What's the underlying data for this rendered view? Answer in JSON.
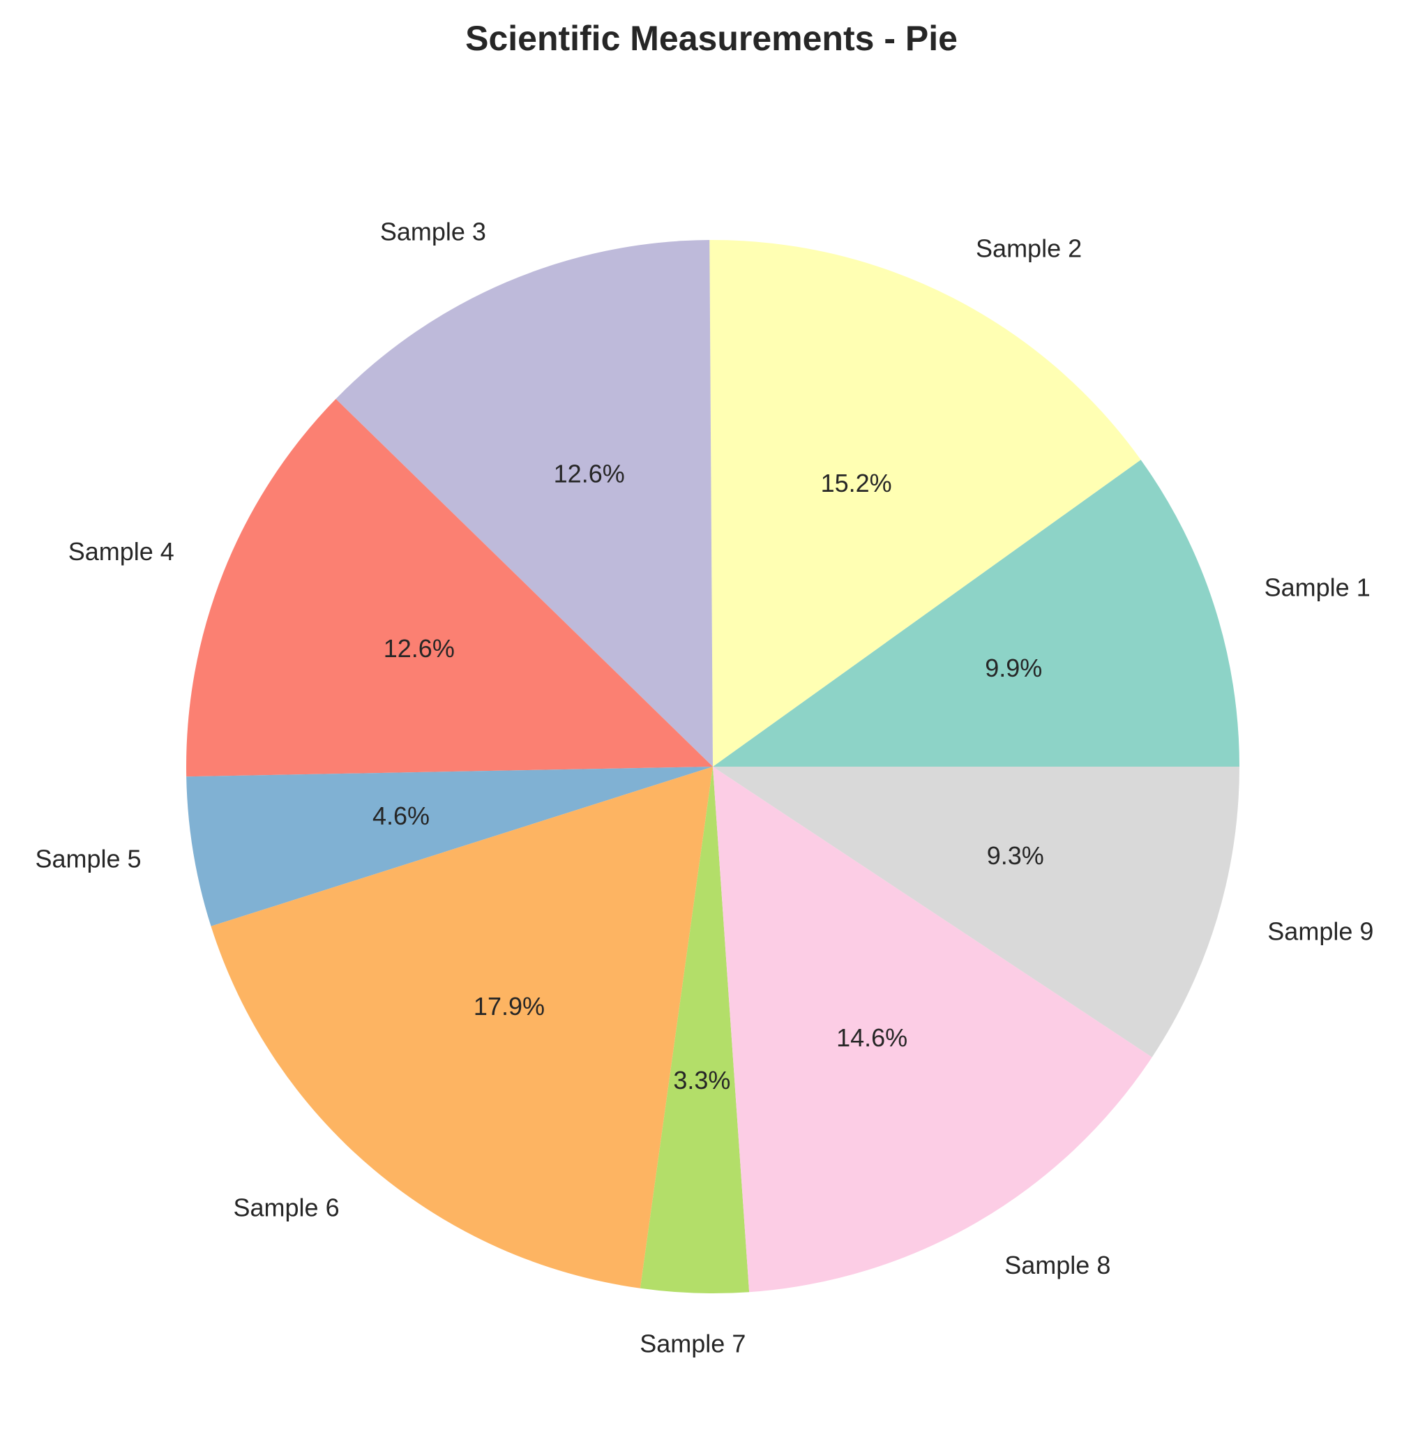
{
  "chart_data": {
    "type": "pie",
    "title": "Scientific Measurements - Pie",
    "categories": [
      "Sample 1",
      "Sample 2",
      "Sample 3",
      "Sample 4",
      "Sample 5",
      "Sample 6",
      "Sample 7",
      "Sample 8",
      "Sample 9"
    ],
    "values": [
      9.9,
      15.2,
      12.6,
      12.6,
      4.6,
      17.9,
      3.3,
      14.6,
      9.3
    ],
    "value_labels": [
      "9.9%",
      "15.2%",
      "12.6%",
      "12.6%",
      "4.6%",
      "17.9%",
      "3.3%",
      "14.6%",
      "9.3%"
    ],
    "colors": [
      "#8dd3c7",
      "#ffffb3",
      "#bebada",
      "#fb8072",
      "#80b1d3",
      "#fdb462",
      "#b3de69",
      "#fccde5",
      "#d9d9d9"
    ],
    "start_angle_deg": 0,
    "direction": "counterclockwise",
    "legend": "none"
  }
}
